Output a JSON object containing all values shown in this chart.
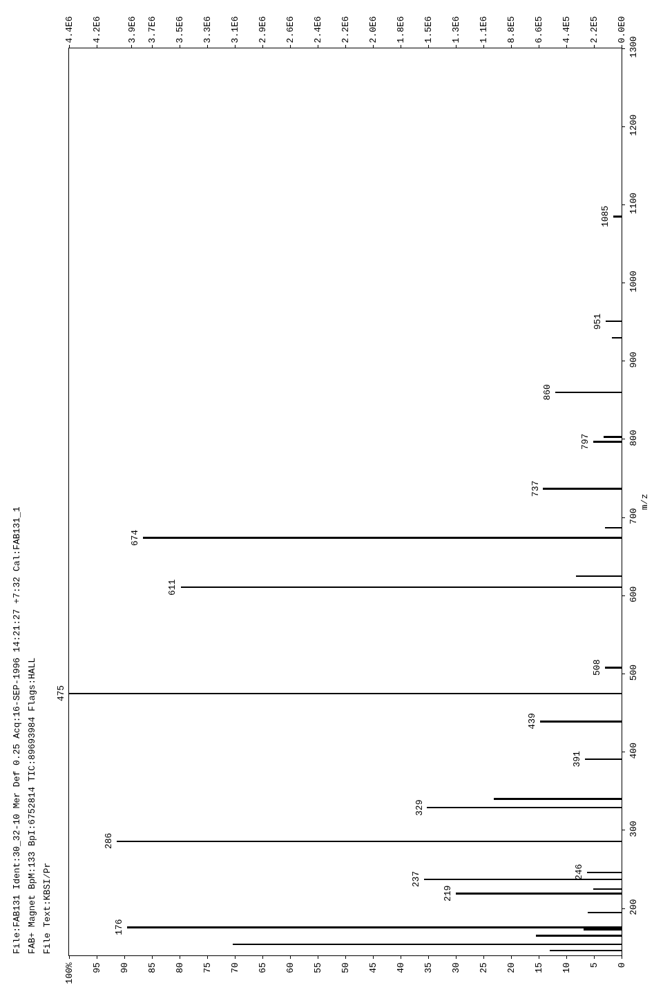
{
  "chart_data": {
    "type": "bar",
    "orientation": "horizontal",
    "title": "File:FAB131 Ident:30_32-10 Mer Def 0.25 Acq:16-SEP-1996 14:21:27 +7:32 Cal:FAB131_1",
    "subtitle": "FAB+ Magnet BpM:133 BpI:6752814 TIC:89693984 Flags:HALL",
    "annotations": [
      "File Text:KBSI/Pr",
      {
        "text": "176",
        "x": 89.5,
        "y": 176
      },
      {
        "text": "219",
        "x": 30,
        "y": 219
      },
      {
        "text": "237",
        "x": 35.8,
        "y": 237
      },
      {
        "text": "246",
        "x": 6.3,
        "y": 246
      },
      {
        "text": "286",
        "x": 91.4,
        "y": 286
      },
      {
        "text": "329",
        "x": 35.2,
        "y": 329
      },
      {
        "text": "391",
        "x": 6.6,
        "y": 391
      },
      {
        "text": "439",
        "x": 14.8,
        "y": 439
      },
      {
        "text": "475",
        "x": 100,
        "y": 475
      },
      {
        "text": "508",
        "x": 3,
        "y": 508
      },
      {
        "text": "611",
        "x": 79.8,
        "y": 611
      },
      {
        "text": "674",
        "x": 86.6,
        "y": 674
      },
      {
        "text": "737",
        "x": 14.2,
        "y": 737
      },
      {
        "text": "797",
        "x": 5.1,
        "y": 797
      },
      {
        "text": "860",
        "x": 12,
        "y": 860
      },
      {
        "text": "951",
        "x": 2.9,
        "y": 951
      },
      {
        "text": "1085",
        "x": 1.5,
        "y": 1085
      }
    ],
    "ylabel": "m/z",
    "x": [
      146,
      154,
      165,
      173,
      176,
      195,
      219,
      225,
      237,
      246,
      286,
      329,
      340,
      391,
      439,
      475,
      508,
      611,
      625,
      674,
      687,
      737,
      797,
      803,
      860,
      930,
      951,
      1085
    ],
    "values": [
      13,
      70.4,
      15.5,
      6.9,
      89.5,
      6.1,
      30,
      5.1,
      35.8,
      6.3,
      91.4,
      35.2,
      23.1,
      6.6,
      14.8,
      100,
      3,
      79.8,
      8.2,
      86.6,
      3,
      14.2,
      5.1,
      3.3,
      12,
      1.8,
      2.9,
      1.5
    ],
    "color": "#000000",
    "xlim": [
      100,
      0
    ],
    "xticks": [
      0,
      5,
      10,
      15,
      20,
      25,
      30,
      35,
      40,
      45,
      50,
      55,
      60,
      65,
      70,
      75,
      80,
      85,
      90,
      95,
      {
        "value": 100,
        "label": "100%"
      }
    ],
    "x2lim": [
      4400000,
      0
    ],
    "x2ticks": [
      {
        "value": 0,
        "label": "0.0E0"
      },
      {
        "value": 220000,
        "label": "2.2E5"
      },
      {
        "value": 440000,
        "label": "4.4E5"
      },
      {
        "value": 660000,
        "label": "6.6E5"
      },
      {
        "value": 880000,
        "label": "8.8E5"
      },
      {
        "value": 1100000,
        "label": "1.1E6"
      },
      {
        "value": 1320000,
        "label": "1.3E6"
      },
      {
        "value": 1540000,
        "label": "1.5E6"
      },
      {
        "value": 1760000,
        "label": "1.8E6"
      },
      {
        "value": 1980000,
        "label": "2.0E6"
      },
      {
        "value": 2200000,
        "label": "2.2E6"
      },
      {
        "value": 2420000,
        "label": "2.4E6"
      },
      {
        "value": 2640000,
        "label": "2.6E6"
      },
      {
        "value": 2860000,
        "label": "2.9E6"
      },
      {
        "value": 3080000,
        "label": "3.1E6"
      },
      {
        "value": 3300000,
        "label": "3.3E6"
      },
      {
        "value": 3520000,
        "label": "3.5E6"
      },
      {
        "value": 3740000,
        "label": "3.7E6"
      },
      {
        "value": 3900000,
        "label": "3.9E6"
      },
      {
        "value": 4180000,
        "label": "4.2E6"
      },
      {
        "value": 4400000,
        "label": "4.4E6"
      }
    ],
    "ylim": [
      140,
      1300
    ],
    "yticks": [
      200,
      300,
      400,
      500,
      600,
      700,
      800,
      900,
      1000,
      1100,
      1200,
      1300
    ]
  }
}
